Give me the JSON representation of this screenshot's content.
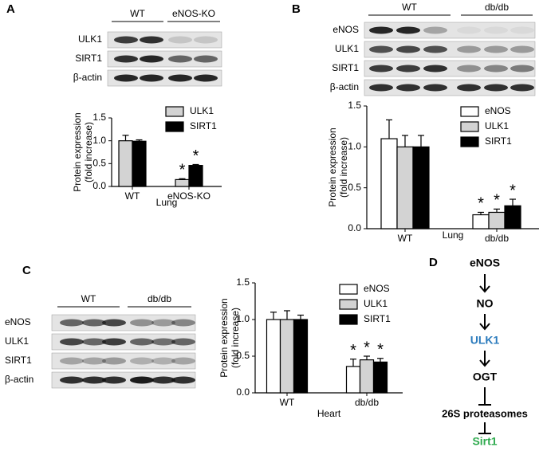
{
  "panels": [
    "A",
    "B",
    "C",
    "D"
  ],
  "blots": [
    {
      "groups": [
        "WT",
        "eNOS-KO"
      ],
      "rows": [
        "ULK1",
        "SIRT1",
        "β-actin"
      ]
    },
    {
      "groups": [
        "WT",
        "db/db"
      ],
      "rows": [
        "eNOS",
        "ULK1",
        "SIRT1",
        "β-actin"
      ]
    },
    {
      "groups": [
        "WT",
        "db/db"
      ],
      "rows": [
        "eNOS",
        "ULK1",
        "SIRT1",
        "β-actin"
      ]
    }
  ],
  "diagram": {
    "nodes": [
      "eNOS",
      "NO",
      "ULK1",
      "OGT",
      "26S proteasomes",
      "Sirt1"
    ]
  },
  "chart_data": [
    {
      "type": "bar",
      "ylabel": [
        "Protein expression",
        "(fold increase)"
      ],
      "xlabel": "Lung",
      "categories": [
        "WT",
        "eNOS-KO"
      ],
      "series": [
        {
          "name": "ULK1",
          "color": "#d3d3d3",
          "values": [
            1.0,
            0.15
          ],
          "errors": [
            0.12,
            0.02
          ],
          "sig": [
            null,
            "*"
          ]
        },
        {
          "name": "SIRT1",
          "color": "#000000",
          "values": [
            0.99,
            0.46
          ],
          "errors": [
            0.03,
            0.02
          ],
          "sig": [
            null,
            "*"
          ]
        }
      ],
      "ylim": [
        0,
        1.5
      ],
      "yticks": [
        {
          "value": 0,
          "label": "0.0"
        },
        {
          "value": 0.5,
          "label": "0.5"
        },
        {
          "value": 1,
          "label": "1.0"
        },
        {
          "value": 1.5,
          "label": "1.5"
        }
      ]
    },
    {
      "type": "bar",
      "ylabel": [
        "Protein expression",
        "(fold increase)"
      ],
      "xlabel": "Lung",
      "categories": [
        "WT",
        "db/db"
      ],
      "series": [
        {
          "name": "eNOS",
          "color": "#ffffff",
          "values": [
            1.1,
            0.17
          ],
          "errors": [
            0.23,
            0.03
          ],
          "sig": [
            null,
            "*"
          ]
        },
        {
          "name": "ULK1",
          "color": "#d3d3d3",
          "values": [
            1.0,
            0.2
          ],
          "errors": [
            0.14,
            0.04
          ],
          "sig": [
            null,
            "*"
          ]
        },
        {
          "name": "SIRT1",
          "color": "#000000",
          "values": [
            1.0,
            0.28
          ],
          "errors": [
            0.14,
            0.08
          ],
          "sig": [
            null,
            "*"
          ]
        }
      ],
      "ylim": [
        0,
        1.5
      ],
      "yticks": [
        {
          "value": 0,
          "label": "0.0"
        },
        {
          "value": 0.5,
          "label": "0.5"
        },
        {
          "value": 1,
          "label": "1.0"
        },
        {
          "value": 1.5,
          "label": "1.5"
        }
      ]
    },
    {
      "type": "bar",
      "ylabel": [
        "Protein expression",
        "(fold increase)"
      ],
      "xlabel": "Heart",
      "categories": [
        "WT",
        "db/db"
      ],
      "series": [
        {
          "name": "eNOS",
          "color": "#ffffff",
          "values": [
            1.0,
            0.36
          ],
          "errors": [
            0.1,
            0.1
          ],
          "sig": [
            null,
            "*"
          ]
        },
        {
          "name": "ULK1",
          "color": "#d3d3d3",
          "values": [
            1.0,
            0.45
          ],
          "errors": [
            0.12,
            0.05
          ],
          "sig": [
            null,
            "*"
          ]
        },
        {
          "name": "SIRT1",
          "color": "#000000",
          "values": [
            1.0,
            0.42
          ],
          "errors": [
            0.06,
            0.05
          ],
          "sig": [
            null,
            "*"
          ]
        }
      ],
      "ylim": [
        0,
        1.5
      ],
      "yticks": [
        {
          "value": 0,
          "label": "0.0"
        },
        {
          "value": 0.5,
          "label": "0.5"
        },
        {
          "value": 1,
          "label": "1.0"
        },
        {
          "value": 1.5,
          "label": "1.5"
        }
      ]
    }
  ]
}
